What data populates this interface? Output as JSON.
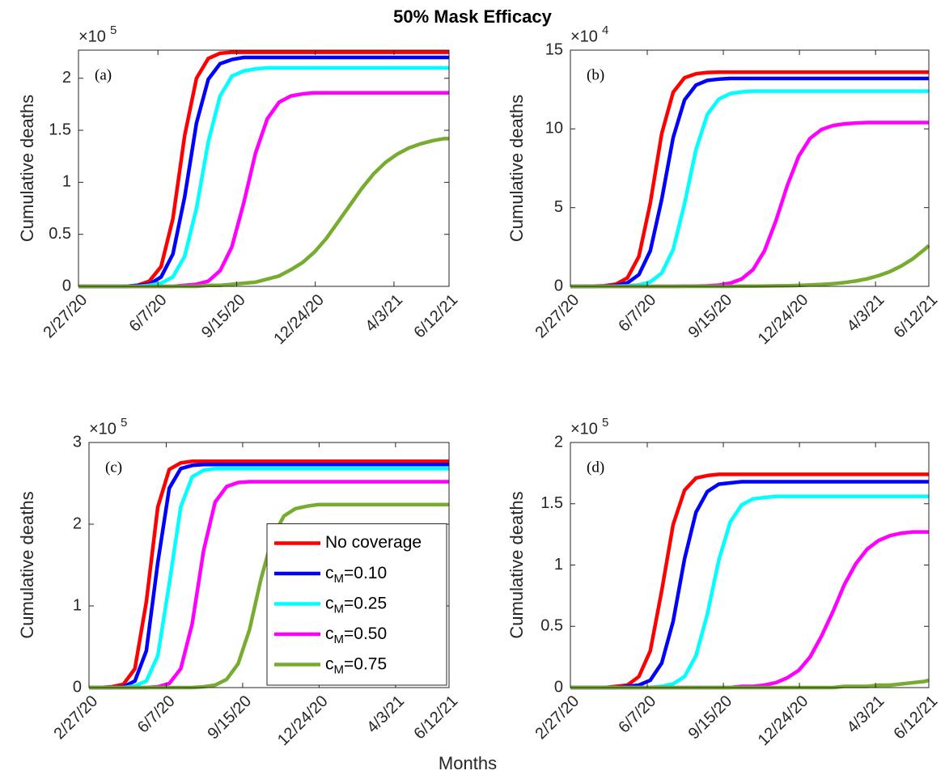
{
  "title": "50% Mask Efficacy",
  "xlabel": "Months",
  "chart_data": [
    {
      "type": "line",
      "panel_label": "(a)",
      "ylabel": "Cumulative deaths",
      "y_scale_label": {
        "base": "×10",
        "power": "5"
      },
      "x": [
        "2020-02-27",
        "2020-03-13",
        "2020-03-28",
        "2020-04-12",
        "2020-04-27",
        "2020-05-12",
        "2020-05-27",
        "2020-06-11",
        "2020-06-26",
        "2020-07-11",
        "2020-07-26",
        "2020-08-10",
        "2020-08-25",
        "2020-09-09",
        "2020-09-24",
        "2020-10-09",
        "2020-10-24",
        "2020-11-08",
        "2020-11-23",
        "2020-12-08",
        "2020-12-23",
        "2021-01-07",
        "2021-01-22",
        "2021-02-06",
        "2021-02-21",
        "2021-03-08",
        "2021-03-23",
        "2021-04-07",
        "2021-04-22",
        "2021-05-07",
        "2021-05-22",
        "2021-06-06",
        "2021-06-12"
      ],
      "xlim": [
        "2020-02-27",
        "2021-06-12"
      ],
      "xticks": [
        {
          "value": "2020-02-27",
          "label": "2/27/20"
        },
        {
          "value": "2020-06-07",
          "label": "6/7/20"
        },
        {
          "value": "2020-09-15",
          "label": "9/15/20"
        },
        {
          "value": "2020-12-24",
          "label": "12/24/20"
        },
        {
          "value": "2021-04-03",
          "label": "4/3/21"
        },
        {
          "value": "2021-06-12",
          "label": "6/12/21"
        }
      ],
      "ylim": [
        0,
        2.27
      ],
      "yticks": [
        0,
        0.5,
        1,
        1.5,
        2
      ],
      "series": [
        {
          "color": "#ff0000",
          "values": [
            0,
            0,
            0,
            0,
            0,
            0.01,
            0.05,
            0.19,
            0.65,
            1.45,
            2.0,
            2.19,
            2.24,
            2.25,
            2.25,
            2.25,
            2.25,
            2.25,
            2.25,
            2.25,
            2.25,
            2.25,
            2.25,
            2.25,
            2.25,
            2.25,
            2.25,
            2.25,
            2.25,
            2.25,
            2.25,
            2.25,
            2.25
          ]
        },
        {
          "color": "#0000ff",
          "values": [
            0,
            0,
            0,
            0,
            0,
            0.01,
            0.02,
            0.09,
            0.31,
            0.86,
            1.57,
            1.99,
            2.14,
            2.18,
            2.2,
            2.2,
            2.2,
            2.2,
            2.2,
            2.2,
            2.2,
            2.2,
            2.2,
            2.2,
            2.2,
            2.2,
            2.2,
            2.2,
            2.2,
            2.2,
            2.2,
            2.2,
            2.2
          ]
        },
        {
          "color": "#00ffff",
          "values": [
            0,
            0,
            0,
            0,
            0,
            0,
            0.01,
            0.03,
            0.09,
            0.29,
            0.75,
            1.39,
            1.83,
            2.02,
            2.07,
            2.09,
            2.1,
            2.1,
            2.1,
            2.1,
            2.1,
            2.1,
            2.1,
            2.1,
            2.1,
            2.1,
            2.1,
            2.1,
            2.1,
            2.1,
            2.1,
            2.1,
            2.1
          ]
        },
        {
          "color": "#ff00ff",
          "values": [
            0,
            0,
            0,
            0,
            0,
            0,
            0,
            0,
            0,
            0.01,
            0.02,
            0.05,
            0.15,
            0.38,
            0.8,
            1.28,
            1.61,
            1.77,
            1.83,
            1.85,
            1.86,
            1.86,
            1.86,
            1.86,
            1.86,
            1.86,
            1.86,
            1.86,
            1.86,
            1.86,
            1.86,
            1.86,
            1.86
          ]
        },
        {
          "color": "#77ac30",
          "values": [
            0,
            0,
            0,
            0,
            0,
            0,
            0,
            0,
            0,
            0,
            0,
            0.01,
            0.01,
            0.02,
            0.03,
            0.04,
            0.07,
            0.1,
            0.16,
            0.23,
            0.33,
            0.46,
            0.62,
            0.78,
            0.94,
            1.08,
            1.19,
            1.27,
            1.33,
            1.37,
            1.4,
            1.42,
            1.42
          ]
        }
      ]
    },
    {
      "type": "line",
      "panel_label": "(b)",
      "ylabel": "Cumulative deaths",
      "y_scale_label": {
        "base": "×10",
        "power": "4"
      },
      "x": [
        "2020-02-27",
        "2020-03-13",
        "2020-03-28",
        "2020-04-12",
        "2020-04-27",
        "2020-05-12",
        "2020-05-27",
        "2020-06-11",
        "2020-06-26",
        "2020-07-11",
        "2020-07-26",
        "2020-08-10",
        "2020-08-25",
        "2020-09-09",
        "2020-09-24",
        "2020-10-09",
        "2020-10-24",
        "2020-11-08",
        "2020-11-23",
        "2020-12-08",
        "2020-12-23",
        "2021-01-07",
        "2021-01-22",
        "2021-02-06",
        "2021-02-21",
        "2021-03-08",
        "2021-03-23",
        "2021-04-07",
        "2021-04-22",
        "2021-05-07",
        "2021-05-22",
        "2021-06-06",
        "2021-06-12"
      ],
      "xlim": [
        "2020-02-27",
        "2021-06-12"
      ],
      "xticks": [
        {
          "value": "2020-02-27",
          "label": "2/27/20"
        },
        {
          "value": "2020-06-07",
          "label": "6/7/20"
        },
        {
          "value": "2020-09-15",
          "label": "9/15/20"
        },
        {
          "value": "2020-12-24",
          "label": "12/24/20"
        },
        {
          "value": "2021-04-03",
          "label": "4/3/21"
        },
        {
          "value": "2021-06-12",
          "label": "6/12/21"
        }
      ],
      "ylim": [
        0,
        15
      ],
      "yticks": [
        0,
        5,
        10,
        15
      ],
      "series": [
        {
          "color": "#ff0000",
          "values": [
            0,
            0,
            0.01,
            0.04,
            0.14,
            0.54,
            1.9,
            5.29,
            9.7,
            12.32,
            13.25,
            13.5,
            13.58,
            13.6,
            13.6,
            13.6,
            13.6,
            13.6,
            13.6,
            13.6,
            13.6,
            13.6,
            13.6,
            13.6,
            13.6,
            13.6,
            13.6,
            13.6,
            13.6,
            13.6,
            13.6,
            13.6,
            13.6
          ]
        },
        {
          "color": "#0000ff",
          "values": [
            0,
            0,
            0,
            0.02,
            0.06,
            0.22,
            0.74,
            2.26,
            5.52,
            9.44,
            11.84,
            12.78,
            13.08,
            13.16,
            13.2,
            13.2,
            13.2,
            13.2,
            13.2,
            13.2,
            13.2,
            13.2,
            13.2,
            13.2,
            13.2,
            13.2,
            13.2,
            13.2,
            13.2,
            13.2,
            13.2,
            13.2,
            13.2
          ]
        },
        {
          "color": "#00ffff",
          "values": [
            0,
            0,
            0,
            0,
            0.01,
            0.03,
            0.09,
            0.28,
            0.84,
            2.33,
            5.25,
            8.68,
            10.92,
            11.89,
            12.24,
            12.35,
            12.4,
            12.4,
            12.4,
            12.4,
            12.4,
            12.4,
            12.4,
            12.4,
            12.4,
            12.4,
            12.4,
            12.4,
            12.4,
            12.4,
            12.4,
            12.4,
            12.4
          ]
        },
        {
          "color": "#ff00ff",
          "values": [
            0,
            0,
            0,
            0,
            0,
            0,
            0,
            0,
            0,
            0,
            0.01,
            0.01,
            0.03,
            0.08,
            0.2,
            0.47,
            1.06,
            2.25,
            4.15,
            6.4,
            8.26,
            9.4,
            9.96,
            10.21,
            10.32,
            10.37,
            10.4,
            10.4,
            10.4,
            10.4,
            10.4,
            10.4,
            10.4
          ]
        },
        {
          "color": "#77ac30",
          "values": [
            0,
            0,
            0,
            0,
            0,
            0,
            0,
            0,
            0,
            0,
            0,
            0,
            0,
            0,
            0,
            0.01,
            0.01,
            0.02,
            0.03,
            0.04,
            0.06,
            0.09,
            0.12,
            0.17,
            0.24,
            0.34,
            0.48,
            0.68,
            0.94,
            1.3,
            1.75,
            2.33,
            2.59
          ]
        }
      ]
    },
    {
      "type": "line",
      "panel_label": "(c)",
      "ylabel": "Cumulative deaths",
      "y_scale_label": {
        "base": "×10",
        "power": "5"
      },
      "legend": "lower right",
      "x": [
        "2020-02-27",
        "2020-03-13",
        "2020-03-28",
        "2020-04-12",
        "2020-04-27",
        "2020-05-12",
        "2020-05-27",
        "2020-06-11",
        "2020-06-26",
        "2020-07-11",
        "2020-07-26",
        "2020-08-10",
        "2020-08-25",
        "2020-09-09",
        "2020-09-24",
        "2020-10-09",
        "2020-10-24",
        "2020-11-08",
        "2020-11-23",
        "2020-12-08",
        "2020-12-23",
        "2021-01-07",
        "2021-01-22",
        "2021-02-06",
        "2021-02-21",
        "2021-03-08",
        "2021-03-23",
        "2021-04-07",
        "2021-04-22",
        "2021-05-07",
        "2021-05-22",
        "2021-06-06",
        "2021-06-12"
      ],
      "xlim": [
        "2020-02-27",
        "2021-06-12"
      ],
      "xticks": [
        {
          "value": "2020-02-27",
          "label": "2/27/20"
        },
        {
          "value": "2020-06-07",
          "label": "6/7/20"
        },
        {
          "value": "2020-09-15",
          "label": "9/15/20"
        },
        {
          "value": "2020-12-24",
          "label": "12/24/20"
        },
        {
          "value": "2021-04-03",
          "label": "4/3/21"
        },
        {
          "value": "2021-06-12",
          "label": "6/12/21"
        }
      ],
      "ylim": [
        0,
        3
      ],
      "yticks": [
        0,
        1,
        2,
        3
      ],
      "series": [
        {
          "name": "No coverage",
          "color": "#ff0000",
          "values": [
            0,
            0,
            0.01,
            0.04,
            0.23,
            1.05,
            2.21,
            2.67,
            2.75,
            2.77,
            2.77,
            2.77,
            2.77,
            2.77,
            2.77,
            2.77,
            2.77,
            2.77,
            2.77,
            2.77,
            2.77,
            2.77,
            2.77,
            2.77,
            2.77,
            2.77,
            2.77,
            2.77,
            2.77,
            2.77,
            2.77,
            2.77,
            2.77
          ]
        },
        {
          "name": "c_M=0.10",
          "color": "#0000ff",
          "values": [
            0,
            0,
            0,
            0.01,
            0.08,
            0.45,
            1.53,
            2.44,
            2.68,
            2.72,
            2.73,
            2.73,
            2.73,
            2.73,
            2.73,
            2.73,
            2.73,
            2.73,
            2.73,
            2.73,
            2.73,
            2.73,
            2.73,
            2.73,
            2.73,
            2.73,
            2.73,
            2.73,
            2.73,
            2.73,
            2.73,
            2.73,
            2.73
          ]
        },
        {
          "name": "c_M=0.25",
          "color": "#00ffff",
          "values": [
            0,
            0,
            0,
            0,
            0.02,
            0.08,
            0.39,
            1.27,
            2.21,
            2.58,
            2.66,
            2.68,
            2.68,
            2.68,
            2.68,
            2.68,
            2.68,
            2.68,
            2.68,
            2.68,
            2.68,
            2.68,
            2.68,
            2.68,
            2.68,
            2.68,
            2.68,
            2.68,
            2.68,
            2.68,
            2.68,
            2.68,
            2.68
          ]
        },
        {
          "name": "c_M=0.50",
          "color": "#ff00ff",
          "values": [
            0,
            0,
            0,
            0,
            0,
            0,
            0.01,
            0.05,
            0.23,
            0.78,
            1.68,
            2.27,
            2.46,
            2.51,
            2.52,
            2.52,
            2.52,
            2.52,
            2.52,
            2.52,
            2.52,
            2.52,
            2.52,
            2.52,
            2.52,
            2.52,
            2.52,
            2.52,
            2.52,
            2.52,
            2.52,
            2.52,
            2.52
          ]
        },
        {
          "name": "c_M=0.75",
          "color": "#77ac30",
          "values": [
            0,
            0,
            0,
            0,
            0,
            0,
            0,
            0,
            0,
            0,
            0.01,
            0.03,
            0.1,
            0.29,
            0.71,
            1.33,
            1.84,
            2.1,
            2.19,
            2.22,
            2.24,
            2.24,
            2.24,
            2.24,
            2.24,
            2.24,
            2.24,
            2.24,
            2.24,
            2.24,
            2.24,
            2.24,
            2.24
          ]
        }
      ]
    },
    {
      "type": "line",
      "panel_label": "(d)",
      "ylabel": "Cumulative deaths",
      "y_scale_label": {
        "base": "×10",
        "power": "5"
      },
      "x": [
        "2020-02-27",
        "2020-03-13",
        "2020-03-28",
        "2020-04-12",
        "2020-04-27",
        "2020-05-12",
        "2020-05-27",
        "2020-06-11",
        "2020-06-26",
        "2020-07-11",
        "2020-07-26",
        "2020-08-10",
        "2020-08-25",
        "2020-09-09",
        "2020-09-24",
        "2020-10-09",
        "2020-10-24",
        "2020-11-08",
        "2020-11-23",
        "2020-12-08",
        "2020-12-23",
        "2021-01-07",
        "2021-01-22",
        "2021-02-06",
        "2021-02-21",
        "2021-03-08",
        "2021-03-23",
        "2021-04-07",
        "2021-04-22",
        "2021-05-07",
        "2021-05-22",
        "2021-06-06",
        "2021-06-12"
      ],
      "xlim": [
        "2020-02-27",
        "2021-06-12"
      ],
      "xticks": [
        {
          "value": "2020-02-27",
          "label": "2/27/20"
        },
        {
          "value": "2020-06-07",
          "label": "6/7/20"
        },
        {
          "value": "2020-09-15",
          "label": "9/15/20"
        },
        {
          "value": "2020-12-24",
          "label": "12/24/20"
        },
        {
          "value": "2021-04-03",
          "label": "4/3/21"
        },
        {
          "value": "2021-06-12",
          "label": "6/12/21"
        }
      ],
      "ylim": [
        0,
        2
      ],
      "yticks": [
        0,
        0.5,
        1,
        1.5,
        2
      ],
      "series": [
        {
          "color": "#ff0000",
          "values": [
            0,
            0,
            0,
            0,
            0.01,
            0.02,
            0.09,
            0.3,
            0.79,
            1.33,
            1.61,
            1.71,
            1.73,
            1.74,
            1.74,
            1.74,
            1.74,
            1.74,
            1.74,
            1.74,
            1.74,
            1.74,
            1.74,
            1.74,
            1.74,
            1.74,
            1.74,
            1.74,
            1.74,
            1.74,
            1.74,
            1.74,
            1.74
          ]
        },
        {
          "color": "#0000ff",
          "values": [
            0,
            0,
            0,
            0,
            0,
            0.01,
            0.02,
            0.06,
            0.2,
            0.54,
            1.05,
            1.43,
            1.6,
            1.66,
            1.67,
            1.68,
            1.68,
            1.68,
            1.68,
            1.68,
            1.68,
            1.68,
            1.68,
            1.68,
            1.68,
            1.68,
            1.68,
            1.68,
            1.68,
            1.68,
            1.68,
            1.68,
            1.68
          ]
        },
        {
          "color": "#00ffff",
          "values": [
            0,
            0,
            0,
            0,
            0,
            0,
            0,
            0,
            0.01,
            0.03,
            0.09,
            0.26,
            0.6,
            1.04,
            1.35,
            1.49,
            1.54,
            1.55,
            1.56,
            1.56,
            1.56,
            1.56,
            1.56,
            1.56,
            1.56,
            1.56,
            1.56,
            1.56,
            1.56,
            1.56,
            1.56,
            1.56,
            1.56
          ]
        },
        {
          "color": "#ff00ff",
          "values": [
            0,
            0,
            0,
            0,
            0,
            0,
            0,
            0,
            0,
            0,
            0,
            0,
            0,
            0,
            0,
            0.01,
            0.01,
            0.02,
            0.04,
            0.08,
            0.14,
            0.25,
            0.42,
            0.62,
            0.84,
            1.01,
            1.13,
            1.2,
            1.24,
            1.26,
            1.27,
            1.27,
            1.27
          ]
        },
        {
          "color": "#77ac30",
          "values": [
            0,
            0,
            0,
            0,
            0,
            0,
            0,
            0,
            0,
            0,
            0,
            0,
            0,
            0,
            0,
            0,
            0,
            0,
            0,
            0,
            0,
            0,
            0,
            0,
            0.01,
            0.01,
            0.01,
            0.02,
            0.02,
            0.03,
            0.04,
            0.05,
            0.06
          ]
        }
      ]
    }
  ]
}
